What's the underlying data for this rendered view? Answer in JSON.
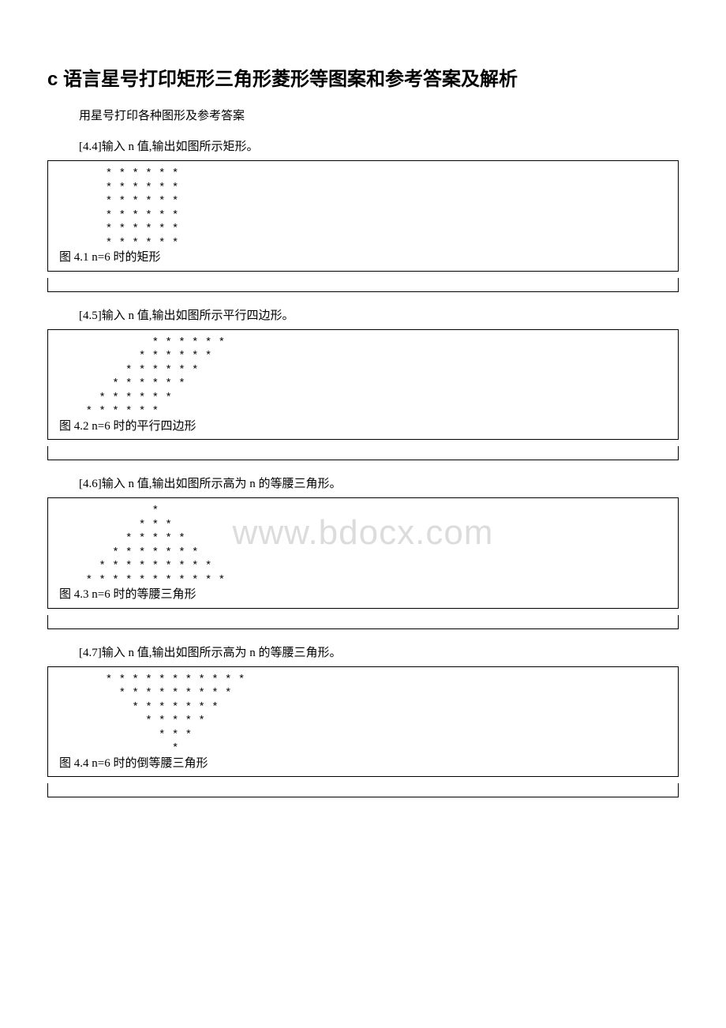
{
  "title": "c 语言星号打印矩形三角形菱形等图案和参考答案及解析",
  "subtitle": "用星号打印各种图形及参考答案",
  "watermark": "www.bdocx.com",
  "problems": [
    {
      "label": "[4.4]输入 n 值,输出如图所示矩形。",
      "pattern": "       * * * * * *\n       * * * * * *\n       * * * * * *\n       * * * * * *\n       * * * * * *\n       * * * * * *",
      "caption": " 图 4.1  n=6 时的矩形"
    },
    {
      "label": "[4.5]输入 n 值,输出如图所示平行四边形。",
      "pattern": "              * * * * * *\n            * * * * * *\n          * * * * * *\n        * * * * * *\n      * * * * * *\n    * * * * * *",
      "caption": "     图 4.2  n=6 时的平行四边形"
    },
    {
      "label": "[4.6]输入 n 值,输出如图所示高为 n 的等腰三角形。",
      "pattern": "              *\n            * * *\n          * * * * *\n        * * * * * * *\n      * * * * * * * * *\n    * * * * * * * * * * *",
      "caption": " 图 4.3  n=6 时的等腰三角形"
    },
    {
      "label": "[4.7]输入 n 值,输出如图所示高为 n 的等腰三角形。",
      "pattern": "       * * * * * * * * * * *\n         * * * * * * * * *\n           * * * * * * *\n             * * * * *\n               * * *\n                 *",
      "caption": "    图 4.4  n=6 时的倒等腰三角形"
    }
  ]
}
